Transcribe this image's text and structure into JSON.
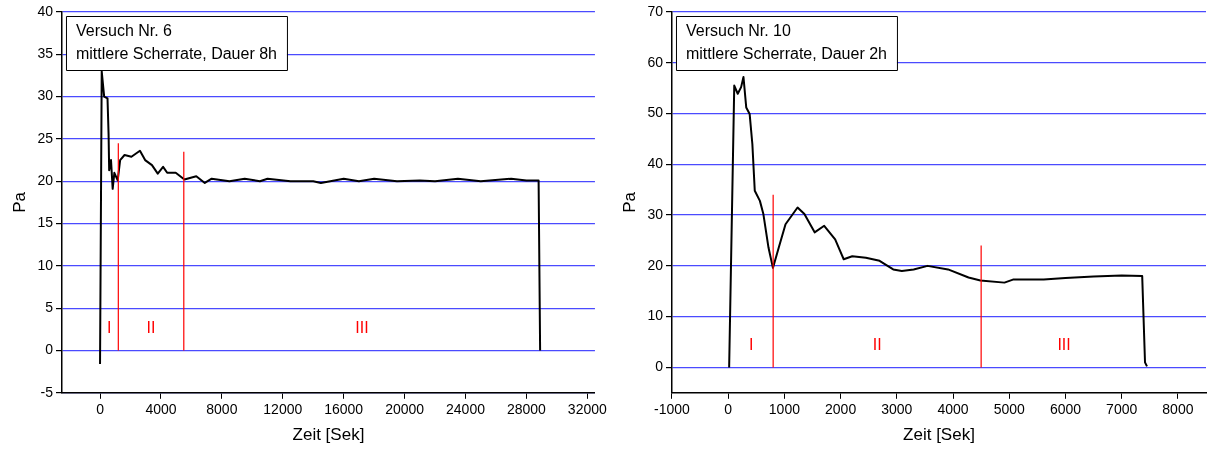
{
  "chart_data": [
    {
      "type": "line",
      "title": "Versuch Nr. 6",
      "subtitle": "mittlere Scherrate, Dauer 8h",
      "xlabel": "Zeit [Sek]",
      "ylabel": "Pa",
      "xlim": [
        -2500,
        32500
      ],
      "xticks": [
        0,
        4000,
        8000,
        12000,
        16000,
        20000,
        24000,
        28000,
        32000
      ],
      "ylim": [
        -5,
        40
      ],
      "yticks": [
        -5,
        0,
        5,
        10,
        15,
        20,
        25,
        30,
        35,
        40
      ],
      "grid": "y",
      "marker": "none",
      "line_style": "solid",
      "series": [
        {
          "color": "#000000",
          "x": [
            0,
            110,
            270,
            490,
            560,
            600,
            720,
            830,
            940,
            1160,
            1320,
            1610,
            2060,
            2620,
            2960,
            3410,
            3790,
            4140,
            4410,
            4970,
            5540,
            6320,
            6880,
            7330,
            8500,
            9500,
            10500,
            11000,
            12500,
            14000,
            14500,
            16000,
            17000,
            18000,
            19500,
            21000,
            22000,
            23500,
            25000,
            27000,
            28000,
            28800,
            28850,
            28900
          ],
          "values": [
            -1.6,
            33,
            30,
            29.8,
            25.6,
            21.3,
            22.5,
            19.1,
            21,
            20.1,
            22.5,
            23.1,
            22.9,
            23.6,
            22.5,
            21.9,
            20.9,
            21.7,
            21,
            21,
            20.2,
            20.6,
            19.8,
            20.3,
            20,
            20.3,
            20,
            20.3,
            20,
            20,
            19.8,
            20.3,
            20,
            20.3,
            20,
            20.1,
            20,
            20.3,
            20,
            20.3,
            20.1,
            20.1,
            10,
            0
          ]
        },
        {
          "type": "line",
          "color": "#ff0000",
          "x": [
            1200,
            1200
          ],
          "values": [
            0,
            24.5
          ]
        },
        {
          "type": "line",
          "color": "#ff0000",
          "x": [
            5500,
            5500
          ],
          "values": [
            0,
            23.5
          ]
        }
      ],
      "annotations": [
        "I",
        "II",
        "III"
      ]
    },
    {
      "type": "line",
      "title": "Versuch Nr. 10",
      "subtitle": "mittlere Scherrate, Dauer 2h",
      "xlabel": "Zeit [Sek]",
      "ylabel": "Pa",
      "xlim": [
        -1000,
        8500
      ],
      "xticks": [
        -1000,
        0,
        1000,
        2000,
        3000,
        4000,
        5000,
        6000,
        7000,
        8000
      ],
      "ylim": [
        -5,
        70
      ],
      "yticks": [
        0,
        10,
        20,
        30,
        40,
        50,
        60,
        70
      ],
      "grid": "y",
      "marker": "none",
      "line_style": "solid",
      "series": [
        {
          "color": "#000000",
          "x": [
            17,
            108,
            170,
            230,
            272,
            321,
            382,
            430,
            473,
            564,
            626,
            717,
            796,
            900,
            1020,
            1234,
            1356,
            1538,
            1708,
            1903,
            2055,
            2207,
            2450,
            2693,
            2936,
            3089,
            3300,
            3546,
            3911,
            4276,
            4487,
            4914,
            5066,
            5613,
            6000,
            6500,
            7000,
            7365,
            7415,
            7450
          ],
          "values": [
            0,
            55.5,
            53.9,
            55.2,
            57.2,
            51.2,
            49.9,
            44,
            34.8,
            32.8,
            30.2,
            23.6,
            19.6,
            23.6,
            28.2,
            31.5,
            30.2,
            26.6,
            27.9,
            25.2,
            21.3,
            21.9,
            21.6,
            21,
            19.3,
            19,
            19.3,
            20,
            19.3,
            17.7,
            17.1,
            16.7,
            17.3,
            17.3,
            17.6,
            17.9,
            18.1,
            18,
            1,
            0.2
          ]
        },
        {
          "type": "line",
          "color": "#ff0000",
          "x": [
            800,
            800
          ],
          "values": [
            0,
            34
          ]
        },
        {
          "type": "line",
          "color": "#ff0000",
          "x": [
            4500,
            4500
          ],
          "values": [
            0,
            24
          ]
        }
      ],
      "annotations": [
        "I",
        "II",
        "III"
      ]
    }
  ]
}
